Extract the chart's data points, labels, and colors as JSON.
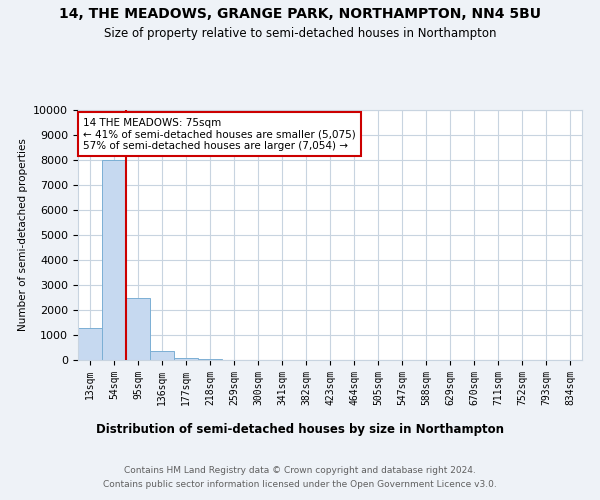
{
  "title1": "14, THE MEADOWS, GRANGE PARK, NORTHAMPTON, NN4 5BU",
  "title2": "Size of property relative to semi-detached houses in Northampton",
  "xlabel": "Distribution of semi-detached houses by size in Northampton",
  "ylabel": "Number of semi-detached properties",
  "footer1": "Contains HM Land Registry data © Crown copyright and database right 2024.",
  "footer2": "Contains public sector information licensed under the Open Government Licence v3.0.",
  "categories": [
    "13sqm",
    "54sqm",
    "95sqm",
    "136sqm",
    "177sqm",
    "218sqm",
    "259sqm",
    "300sqm",
    "341sqm",
    "382sqm",
    "423sqm",
    "464sqm",
    "505sqm",
    "547sqm",
    "588sqm",
    "629sqm",
    "670sqm",
    "711sqm",
    "752sqm",
    "793sqm",
    "834sqm"
  ],
  "values": [
    1300,
    8000,
    2500,
    350,
    100,
    50,
    0,
    0,
    0,
    0,
    0,
    0,
    0,
    0,
    0,
    0,
    0,
    0,
    0,
    0,
    0
  ],
  "bar_color": "#c6d9f0",
  "bar_edge_color": "#7bafd4",
  "red_line_x": 1.5,
  "red_line_color": "#cc0000",
  "annotation_text": "14 THE MEADOWS: 75sqm\n← 41% of semi-detached houses are smaller (5,075)\n57% of semi-detached houses are larger (7,054) →",
  "annotation_box_color": "white",
  "annotation_box_edge": "#cc0000",
  "ylim": [
    0,
    10000
  ],
  "yticks": [
    0,
    1000,
    2000,
    3000,
    4000,
    5000,
    6000,
    7000,
    8000,
    9000,
    10000
  ],
  "background_color": "#eef2f7",
  "plot_bg_color": "white",
  "grid_color": "#c8d4e0"
}
